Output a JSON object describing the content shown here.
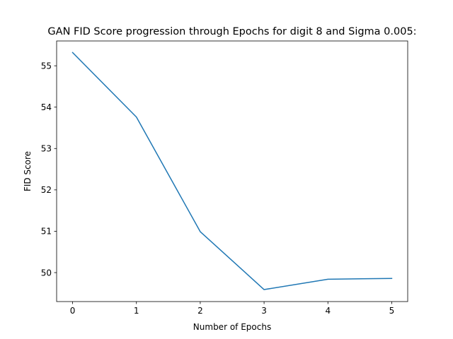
{
  "chart_data": {
    "type": "line",
    "title": "GAN FID Score progression through Epochs for digit 8 and Sigma 0.005:",
    "xlabel": "Number of Epochs",
    "ylabel": "FID Score",
    "x": [
      0,
      1,
      2,
      3,
      4,
      5
    ],
    "series": [
      {
        "values": [
          55.32,
          53.76,
          50.99,
          49.59,
          49.84,
          49.86
        ],
        "color": "#1f77b4"
      }
    ],
    "xticks": [
      0,
      1,
      2,
      3,
      4,
      5
    ],
    "yticks": [
      50,
      51,
      52,
      53,
      54,
      55
    ],
    "xlim": [
      -0.25,
      5.25
    ],
    "ylim": [
      49.3,
      55.6
    ],
    "grid": false,
    "legend": "none"
  }
}
